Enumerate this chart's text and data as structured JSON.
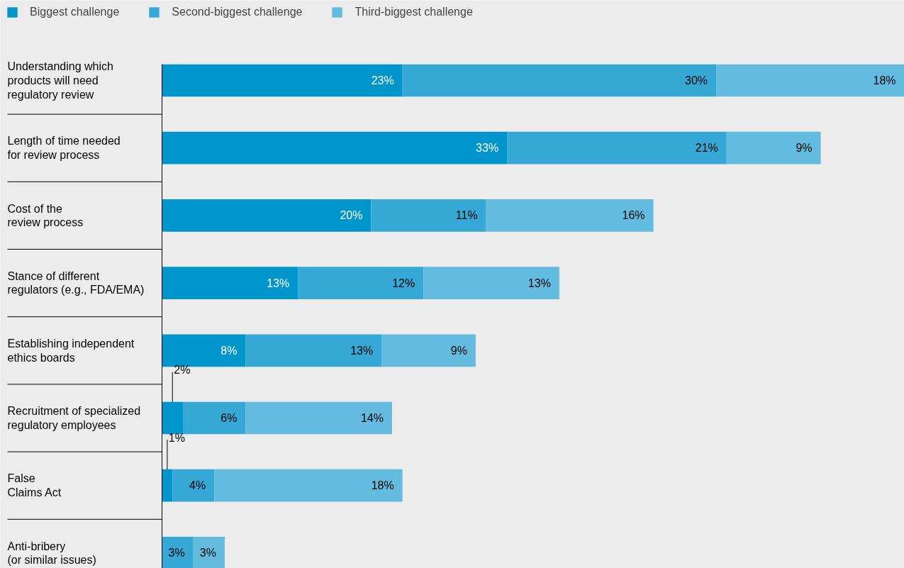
{
  "chart_data": {
    "type": "bar",
    "orientation": "horizontal",
    "stacked": true,
    "legend": "top left",
    "grid": false,
    "categories": [
      "Understanding which\nproducts will need\nregulatory review",
      "Length of time needed\nfor review process",
      "Cost of the\nreview process",
      "Stance of different\nregulators (e.g., FDA/EMA)",
      "Establishing independent\nethics boards",
      "Recruitment of specialized\nregulatory employees",
      "False\nClaims Act",
      "Anti-bribery\n(or similar issues)"
    ],
    "series": [
      {
        "name": "Biggest challenge",
        "color": "#0095cb",
        "values": [
          23,
          33,
          20,
          13,
          8,
          2,
          1,
          null
        ],
        "value_labels": [
          "23%",
          "33%",
          "20%",
          "13%",
          "8%",
          "2%",
          "1%",
          null
        ]
      },
      {
        "name": "Second-biggest challenge",
        "color": "#35a8d6",
        "values": [
          30,
          21,
          11,
          12,
          13,
          6,
          4,
          3
        ],
        "value_labels": [
          "30%",
          "21%",
          "11%",
          "12%",
          "13%",
          "6%",
          "4%",
          "3%"
        ]
      },
      {
        "name": "Third-biggest challenge",
        "color": "#63bce0",
        "values": [
          18,
          9,
          16,
          13,
          9,
          14,
          18,
          3
        ],
        "value_labels": [
          "18%",
          "9%",
          "16%",
          "13%",
          "9%",
          "14%",
          "18%",
          "3%"
        ]
      }
    ]
  }
}
